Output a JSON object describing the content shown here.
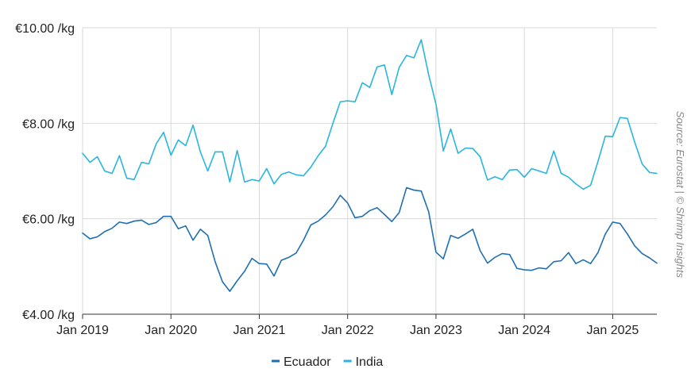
{
  "source_note": "Source: Eurostat | © Shrimp Insights",
  "colors": {
    "grid": "#d9d9d9",
    "axis": "#333333"
  },
  "chart_data": {
    "type": "line",
    "title": "",
    "xlabel": "",
    "ylabel": "",
    "ylim": [
      4,
      10
    ],
    "xlim": [
      "2019-01",
      "2025-07"
    ],
    "grid": true,
    "legend_position": "bottom-center",
    "y_ticks": [
      {
        "value": 4,
        "label": "€4.00 /kg"
      },
      {
        "value": 6,
        "label": "€6.00 /kg"
      },
      {
        "value": 8,
        "label": "€8.00 /kg"
      },
      {
        "value": 10,
        "label": "€10.00 /kg"
      }
    ],
    "x_ticks": [
      {
        "value": "2019-01",
        "label": "Jan 2019"
      },
      {
        "value": "2020-01",
        "label": "Jan 2020"
      },
      {
        "value": "2021-01",
        "label": "Jan 2021"
      },
      {
        "value": "2022-01",
        "label": "Jan 2022"
      },
      {
        "value": "2023-01",
        "label": "Jan 2023"
      },
      {
        "value": "2024-01",
        "label": "Jan 2024"
      },
      {
        "value": "2025-01",
        "label": "Jan 2025"
      }
    ],
    "x": [
      "2019-01",
      "2019-02",
      "2019-03",
      "2019-04",
      "2019-05",
      "2019-06",
      "2019-07",
      "2019-08",
      "2019-09",
      "2019-10",
      "2019-11",
      "2019-12",
      "2020-01",
      "2020-02",
      "2020-03",
      "2020-04",
      "2020-05",
      "2020-06",
      "2020-07",
      "2020-08",
      "2020-09",
      "2020-10",
      "2020-11",
      "2020-12",
      "2021-01",
      "2021-02",
      "2021-03",
      "2021-04",
      "2021-05",
      "2021-06",
      "2021-07",
      "2021-08",
      "2021-09",
      "2021-10",
      "2021-11",
      "2021-12",
      "2022-01",
      "2022-02",
      "2022-03",
      "2022-04",
      "2022-05",
      "2022-06",
      "2022-07",
      "2022-08",
      "2022-09",
      "2022-10",
      "2022-11",
      "2022-12",
      "2023-01",
      "2023-02",
      "2023-03",
      "2023-04",
      "2023-05",
      "2023-06",
      "2023-07",
      "2023-08",
      "2023-09",
      "2023-10",
      "2023-11",
      "2023-12",
      "2024-01",
      "2024-02",
      "2024-03",
      "2024-04",
      "2024-05",
      "2024-06",
      "2024-07",
      "2024-08",
      "2024-09",
      "2024-10",
      "2024-11",
      "2024-12",
      "2025-01",
      "2025-02",
      "2025-03",
      "2025-04",
      "2025-05",
      "2025-06",
      "2025-07"
    ],
    "series": [
      {
        "name": "Ecuador",
        "color": "#1f6fb2",
        "values": [
          5.7,
          5.58,
          5.62,
          5.73,
          5.8,
          5.93,
          5.9,
          5.95,
          5.97,
          5.88,
          5.92,
          6.05,
          6.05,
          5.79,
          5.85,
          5.55,
          5.78,
          5.65,
          5.1,
          4.68,
          4.48,
          4.7,
          4.9,
          5.17,
          5.06,
          5.05,
          4.8,
          5.13,
          5.19,
          5.28,
          5.55,
          5.87,
          5.95,
          6.08,
          6.25,
          6.49,
          6.33,
          6.02,
          6.05,
          6.17,
          6.23,
          6.09,
          5.94,
          6.13,
          6.65,
          6.6,
          6.58,
          6.15,
          5.3,
          5.16,
          5.65,
          5.59,
          5.68,
          5.78,
          5.33,
          5.07,
          5.19,
          5.27,
          5.25,
          4.96,
          4.93,
          4.92,
          4.97,
          4.95,
          5.1,
          5.12,
          5.29,
          5.06,
          5.14,
          5.06,
          5.29,
          5.68,
          5.93,
          5.9,
          5.68,
          5.43,
          5.27,
          5.18,
          5.07
        ]
      },
      {
        "name": "India",
        "color": "#29b5e0",
        "values": [
          7.37,
          7.18,
          7.3,
          7.0,
          6.95,
          7.32,
          6.85,
          6.82,
          7.18,
          7.15,
          7.57,
          7.81,
          7.33,
          7.65,
          7.53,
          7.96,
          7.4,
          7.0,
          7.4,
          7.4,
          6.77,
          7.43,
          6.77,
          6.82,
          6.79,
          7.05,
          6.73,
          6.93,
          6.98,
          6.92,
          6.9,
          7.08,
          7.32,
          7.52,
          8.0,
          8.45,
          8.47,
          8.45,
          8.85,
          8.75,
          9.18,
          9.22,
          8.6,
          9.17,
          9.42,
          9.37,
          9.75,
          9.02,
          8.4,
          7.42,
          7.88,
          7.37,
          7.48,
          7.47,
          7.3,
          6.81,
          6.88,
          6.82,
          7.02,
          7.03,
          6.87,
          7.05,
          7.0,
          6.95,
          7.42,
          6.95,
          6.87,
          6.73,
          6.62,
          6.7,
          7.2,
          7.73,
          7.72,
          8.12,
          8.1,
          7.6,
          7.15,
          6.97,
          6.95
        ]
      }
    ]
  }
}
